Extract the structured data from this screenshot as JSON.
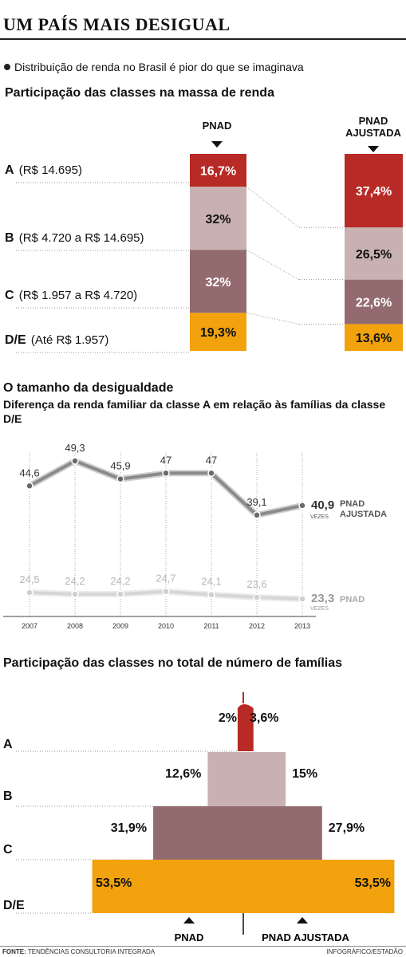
{
  "header": {
    "title": "UM PAÍS MAIS DESIGUAL",
    "subtitle": "Distribuição de renda no Brasil é pior do que se imaginava"
  },
  "section1": {
    "heading": "Participação das classes na massa de renda",
    "col_pnad": "PNAD",
    "col_ajustada_1": "PNAD",
    "col_ajustada_2": "AJUSTADA",
    "classes": [
      {
        "letter": "A",
        "range": "(R$ 14.695)"
      },
      {
        "letter": "B",
        "range": "(R$ 4.720 a R$ 14.695)"
      },
      {
        "letter": "C",
        "range": "(R$ 1.957 a R$ 4.720)"
      },
      {
        "letter": "D/E",
        "range": "(Até R$ 1.957)"
      }
    ]
  },
  "section2": {
    "heading": "O tamanho da desigualdade",
    "subheading": "Diferença da renda familiar da classe A em relação às famílias da classe D/E",
    "unit": "VEZES",
    "label_ajustada_1": "PNAD",
    "label_ajustada_2": "AJUSTADA",
    "label_pnad": "PNAD"
  },
  "section3": {
    "heading": "Participação das classes no total de número de famílias",
    "pnad_label": "PNAD",
    "ajustada_label": "PNAD AJUSTADA",
    "classes": [
      "A",
      "B",
      "C",
      "D/E"
    ]
  },
  "footer": {
    "source_label": "FONTE:",
    "source": "TENDÊNCIAS CONSULTORIA INTEGRADA",
    "credit": "INFOGRÁFICO/ESTADÃO"
  },
  "colors": {
    "A": "#b82a26",
    "B": "#c9b1b1",
    "C": "#936b6e",
    "DE": "#f2a20c",
    "line_dark": "#555555",
    "line_light": "#cfcfcf"
  },
  "chart_data": [
    {
      "type": "bar",
      "title": "Participação das classes na massa de renda",
      "stacked": true,
      "categories": [
        "PNAD",
        "PNAD AJUSTADA"
      ],
      "series": [
        {
          "name": "A",
          "values": [
            16.7,
            37.4
          ],
          "labels": [
            "16,7%",
            "37,4%"
          ]
        },
        {
          "name": "B",
          "values": [
            32,
            26.5
          ],
          "labels": [
            "32%",
            "26,5%"
          ]
        },
        {
          "name": "C",
          "values": [
            32,
            22.6
          ],
          "labels": [
            "32%",
            "22,6%"
          ]
        },
        {
          "name": "D/E",
          "values": [
            19.3,
            13.6
          ],
          "labels": [
            "19,3%",
            "13,6%"
          ]
        }
      ]
    },
    {
      "type": "line",
      "title": "O tamanho da desigualdade",
      "x": [
        "2007",
        "2008",
        "2009",
        "2010",
        "2011",
        "2012",
        "2013"
      ],
      "series": [
        {
          "name": "PNAD AJUSTADA",
          "values": [
            44.6,
            49.3,
            45.9,
            47,
            47,
            39.1,
            40.9
          ],
          "labels": [
            "44,6",
            "49,3",
            "45,9",
            "47",
            "47",
            "39,1",
            "40,9"
          ]
        },
        {
          "name": "PNAD",
          "values": [
            24.5,
            24.2,
            24.2,
            24.7,
            24.1,
            23.6,
            23.3
          ],
          "labels": [
            "24,5",
            "24,2",
            "24,2",
            "24,7",
            "24,1",
            "23,6",
            "23,3"
          ]
        }
      ],
      "ylim": [
        20,
        52
      ],
      "grid": "vertical"
    },
    {
      "type": "bar",
      "title": "Participação das classes no total de número de famílias",
      "orientation": "horizontal-pyramid",
      "categories": [
        "A",
        "B",
        "C",
        "D/E"
      ],
      "series": [
        {
          "name": "PNAD",
          "values": [
            2,
            12.6,
            31.9,
            53.5
          ],
          "labels": [
            "2%",
            "12,6%",
            "31,9%",
            "53,5%"
          ]
        },
        {
          "name": "PNAD AJUSTADA",
          "values": [
            3.6,
            15,
            27.9,
            53.5
          ],
          "labels": [
            "3,6%",
            "15%",
            "27,9%",
            "53,5%"
          ]
        }
      ]
    }
  ]
}
